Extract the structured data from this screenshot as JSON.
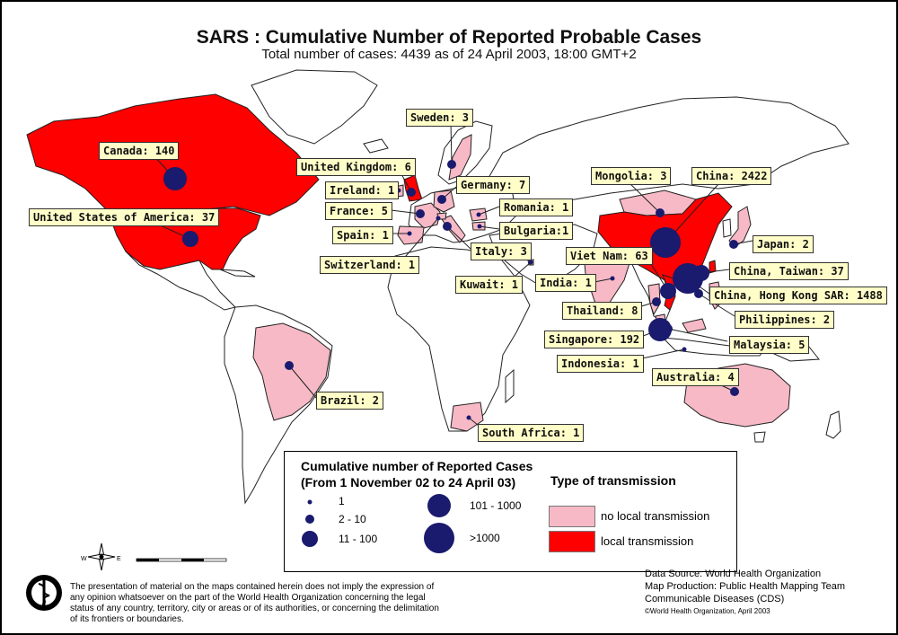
{
  "header": {
    "title": "SARS : Cumulative Number of Reported Probable Cases",
    "subtitle": "Total number of cases: 4439 as of 24 April 2003, 18:00 GMT+2"
  },
  "colors": {
    "local": "#ff0000",
    "no_local": "#f7b9c6",
    "unaffected": "#ffffff",
    "bubble": "#1a1a6e",
    "label_bg": "#fffdc8"
  },
  "countries": [
    {
      "label": "Canada: 140",
      "cases": 140,
      "transmission": "local"
    },
    {
      "label": "United States of America: 37",
      "cases": 37,
      "transmission": "local"
    },
    {
      "label": "United Kingdom: 6",
      "cases": 6,
      "transmission": "local"
    },
    {
      "label": "Ireland: 1",
      "cases": 1,
      "transmission": "no_local"
    },
    {
      "label": "France: 5",
      "cases": 5,
      "transmission": "no_local"
    },
    {
      "label": "Spain: 1",
      "cases": 1,
      "transmission": "no_local"
    },
    {
      "label": "Switzerland: 1",
      "cases": 1,
      "transmission": "no_local"
    },
    {
      "label": "Sweden: 3",
      "cases": 3,
      "transmission": "no_local"
    },
    {
      "label": "Germany: 7",
      "cases": 7,
      "transmission": "no_local"
    },
    {
      "label": "Romania: 1",
      "cases": 1,
      "transmission": "no_local"
    },
    {
      "label": "Bulgaria:1",
      "cases": 1,
      "transmission": "no_local"
    },
    {
      "label": "Italy: 3",
      "cases": 3,
      "transmission": "no_local"
    },
    {
      "label": "Kuwait: 1",
      "cases": 1,
      "transmission": "no_local"
    },
    {
      "label": "India: 1",
      "cases": 1,
      "transmission": "no_local"
    },
    {
      "label": "Mongolia: 3",
      "cases": 3,
      "transmission": "no_local"
    },
    {
      "label": "China: 2422",
      "cases": 2422,
      "transmission": "local"
    },
    {
      "label": "Japan: 2",
      "cases": 2,
      "transmission": "no_local"
    },
    {
      "label": "Viet Nam: 63",
      "cases": 63,
      "transmission": "local"
    },
    {
      "label": "China, Taiwan: 37",
      "cases": 37,
      "transmission": "local"
    },
    {
      "label": "China, Hong Kong SAR: 1488",
      "cases": 1488,
      "transmission": "local"
    },
    {
      "label": "Philippines: 2",
      "cases": 2,
      "transmission": "no_local"
    },
    {
      "label": "Thailand: 8",
      "cases": 8,
      "transmission": "no_local"
    },
    {
      "label": "Singapore: 192",
      "cases": 192,
      "transmission": "local"
    },
    {
      "label": "Malaysia: 5",
      "cases": 5,
      "transmission": "no_local"
    },
    {
      "label": "Indonesia: 1",
      "cases": 1,
      "transmission": "no_local"
    },
    {
      "label": "Australia: 4",
      "cases": 4,
      "transmission": "no_local"
    },
    {
      "label": "Brazil: 2",
      "cases": 2,
      "transmission": "no_local"
    },
    {
      "label": "South Africa: 1",
      "cases": 1,
      "transmission": "no_local"
    }
  ],
  "legend": {
    "title": "Cumulative number of Reported Cases",
    "subtitle": "(From 1 November 02 to 24 April 03)",
    "sizes": [
      "1",
      "2 - 10",
      "11 - 100",
      "101 - 1000",
      ">1000"
    ],
    "type_title": "Type of transmission",
    "types": [
      "no local transmission",
      "local transmission"
    ]
  },
  "compass": {
    "west": "W",
    "east": "E"
  },
  "disclaimer": "The presentation of material on the maps contained herein does not imply the expression of any opinion whatsoever on the part of the World Health Organization concerning the legal status of any country, territory, city or areas or of its authorities, or concerning the delimitation of its frontiers or boundaries.",
  "credits": {
    "source": "Data Source: World Health Organization",
    "production": "Map Production: Public Health Mapping Team",
    "cds": "Communicable Diseases (CDS)",
    "copyright": "©World Health Organization, April 2003"
  }
}
